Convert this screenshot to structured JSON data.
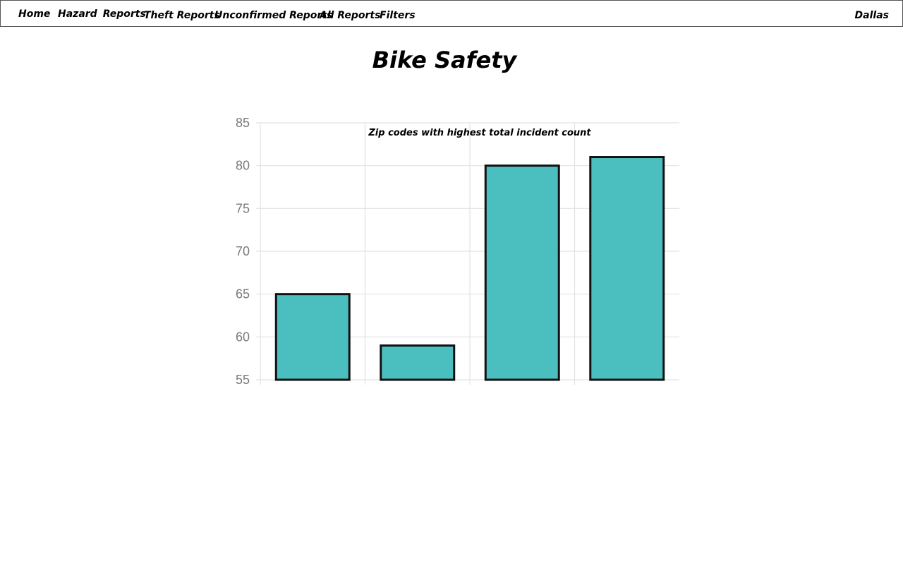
{
  "nav": {
    "home": "Home",
    "hazard_word1": "Hazard",
    "hazard_word2": "Reports",
    "theft": "Theft Reports",
    "unconfirmed": "Unconfirmed Reports",
    "all": "All Reports",
    "filters": "Filters",
    "city": "Dallas"
  },
  "page": {
    "title": "Bike Safety"
  },
  "colors": {
    "bar_fill": "#4bbfbf",
    "bar_stroke": "#111111",
    "grid": "#e2e2e2",
    "tick_text": "#7a7a7a"
  },
  "chart_data": {
    "type": "bar",
    "title": "Zip codes with highest total incident count",
    "categories": [
      "",
      "",
      "",
      ""
    ],
    "values": [
      65,
      59,
      80,
      81
    ],
    "ylim": [
      55,
      85
    ],
    "yticks": [
      85,
      80,
      75,
      70,
      65,
      60,
      55
    ],
    "grid": true,
    "legend": "none",
    "xlabel": "",
    "ylabel": ""
  }
}
